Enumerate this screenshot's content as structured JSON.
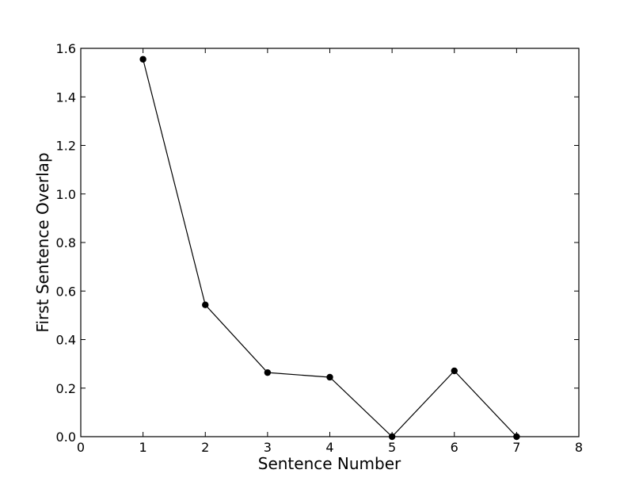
{
  "chart_data": {
    "type": "line",
    "title": "",
    "xlabel": "Sentence Number",
    "ylabel": "First Sentence Overlap",
    "xlim": [
      0,
      8
    ],
    "ylim": [
      0.0,
      1.6
    ],
    "xticks": [
      "0",
      "1",
      "2",
      "3",
      "4",
      "5",
      "6",
      "7",
      "8"
    ],
    "yticks": [
      "0.0",
      "0.2",
      "0.4",
      "0.6",
      "0.8",
      "1.0",
      "1.2",
      "1.4",
      "1.6"
    ],
    "grid": false,
    "series": [
      {
        "x": [
          1,
          2,
          3,
          4,
          5,
          6,
          7
        ],
        "y": [
          1.555,
          0.543,
          0.264,
          0.245,
          0.0,
          0.271,
          0.0
        ],
        "color": "#000000",
        "marker": "circle"
      }
    ]
  }
}
